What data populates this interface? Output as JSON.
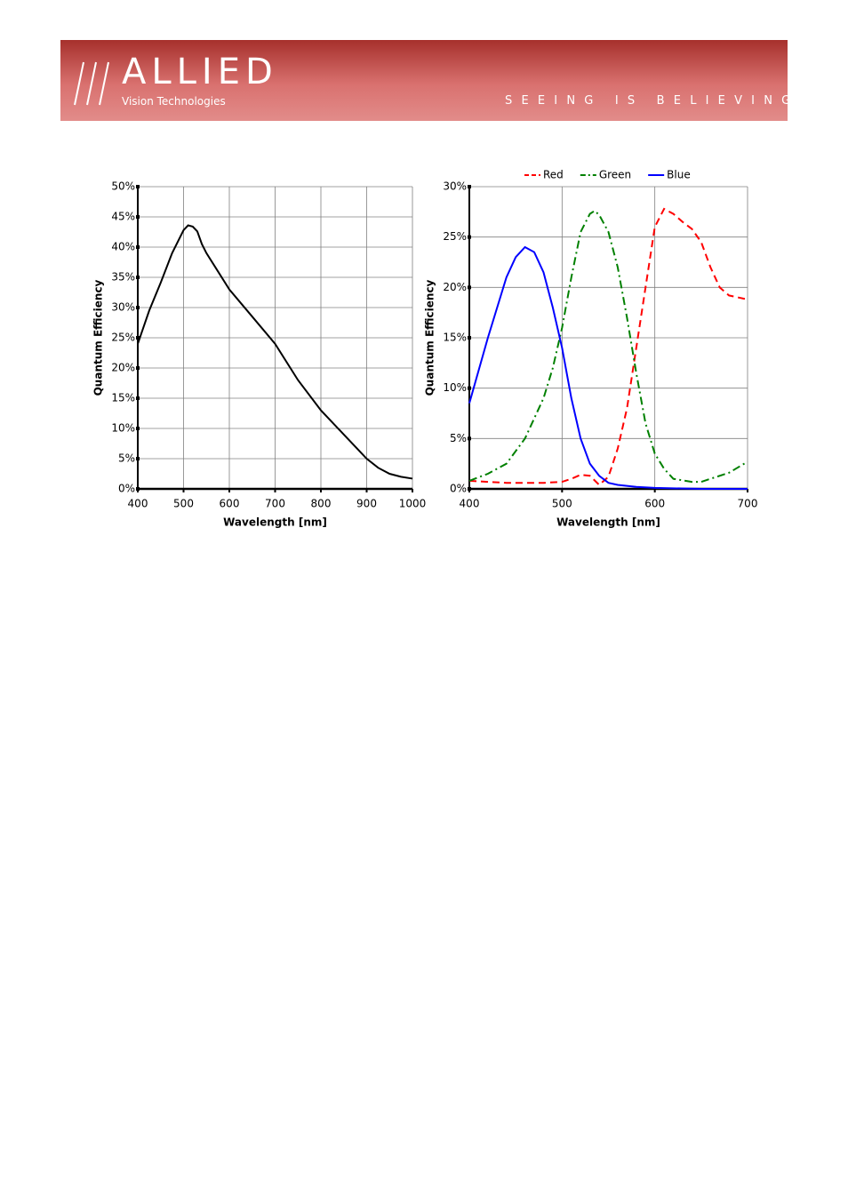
{
  "header": {
    "logo": "ALLIED",
    "subtitle": "Vision Technologies",
    "tagline": "SEEING IS BELIEVING"
  },
  "chart_data": [
    {
      "type": "line",
      "xlabel": "Wavelength [nm]",
      "ylabel": "Quantum Efficiency",
      "color": "#000000",
      "x": [
        400,
        425,
        450,
        475,
        500,
        510,
        520,
        530,
        540,
        550,
        575,
        600,
        650,
        700,
        750,
        800,
        850,
        900,
        925,
        950,
        975,
        1000
      ],
      "values": [
        24,
        29.5,
        34.1,
        39,
        42.8,
        43.6,
        43.4,
        42.6,
        40.5,
        39,
        36,
        33,
        28.5,
        24,
        18,
        13,
        9,
        5,
        3.5,
        2.5,
        2,
        1.7
      ],
      "xlim": [
        400,
        1000
      ],
      "xticks": [
        400,
        500,
        600,
        700,
        800,
        900,
        1000
      ],
      "ylim": [
        0,
        50
      ],
      "yticks": [
        {
          "value": 0,
          "label": "0%"
        },
        {
          "value": 5,
          "label": "5%"
        },
        {
          "value": 10,
          "label": "10%"
        },
        {
          "value": 15,
          "label": "15%"
        },
        {
          "value": 20,
          "label": "20%"
        },
        {
          "value": 25,
          "label": "25%"
        },
        {
          "value": 30,
          "label": "30%"
        },
        {
          "value": 35,
          "label": "35%"
        },
        {
          "value": 40,
          "label": "40%"
        },
        {
          "value": 45,
          "label": "45%"
        },
        {
          "value": 50,
          "label": "50%"
        }
      ],
      "grid": true
    },
    {
      "type": "line",
      "xlabel": "Wavelength [nm]",
      "ylabel": "Quantum Efficiency",
      "legend": "top",
      "series": [
        {
          "name": "Red",
          "color": "#ff0000",
          "dash": "dashed",
          "x": [
            400,
            420,
            440,
            460,
            480,
            500,
            510,
            520,
            530,
            540,
            550,
            560,
            570,
            580,
            590,
            600,
            610,
            620,
            630,
            640,
            650,
            660,
            670,
            680,
            700
          ],
          "values": [
            0.8,
            0.7,
            0.6,
            0.6,
            0.6,
            0.7,
            1.0,
            1.4,
            1.3,
            0.4,
            1.2,
            4,
            8,
            14,
            20,
            26,
            27.8,
            27.3,
            26.5,
            25.8,
            24.5,
            22,
            20,
            19.2,
            18.8
          ]
        },
        {
          "name": "Green",
          "color": "#008000",
          "dash": "dashdot",
          "x": [
            400,
            420,
            440,
            460,
            480,
            490,
            500,
            510,
            520,
            530,
            535,
            540,
            550,
            560,
            570,
            580,
            590,
            600,
            610,
            620,
            640,
            650,
            660,
            680,
            700
          ],
          "values": [
            0.8,
            1.5,
            2.5,
            5,
            9,
            12,
            16,
            21,
            25.5,
            27.3,
            27.6,
            27.2,
            25.5,
            22,
            17,
            11.5,
            6.5,
            3.5,
            2,
            1,
            0.7,
            0.7,
            1.0,
            1.6,
            2.7
          ]
        },
        {
          "name": "Blue",
          "color": "#0000ff",
          "dash": "solid",
          "x": [
            400,
            420,
            440,
            450,
            460,
            470,
            480,
            490,
            500,
            510,
            520,
            530,
            540,
            550,
            560,
            580,
            600,
            650,
            700
          ],
          "values": [
            8.5,
            15,
            21,
            23,
            24,
            23.5,
            21.5,
            18,
            14,
            9,
            5,
            2.5,
            1.3,
            0.6,
            0.4,
            0.2,
            0.1,
            0,
            0
          ]
        }
      ],
      "xlim": [
        400,
        700
      ],
      "xticks": [
        400,
        500,
        600,
        700
      ],
      "ylim": [
        0,
        30
      ],
      "yticks": [
        {
          "value": 0,
          "label": "0%"
        },
        {
          "value": 5,
          "label": "5%"
        },
        {
          "value": 10,
          "label": "10%"
        },
        {
          "value": 15,
          "label": "15%"
        },
        {
          "value": 20,
          "label": "20%"
        },
        {
          "value": 25,
          "label": "25%"
        },
        {
          "value": 30,
          "label": "30%"
        }
      ],
      "grid": true
    }
  ]
}
